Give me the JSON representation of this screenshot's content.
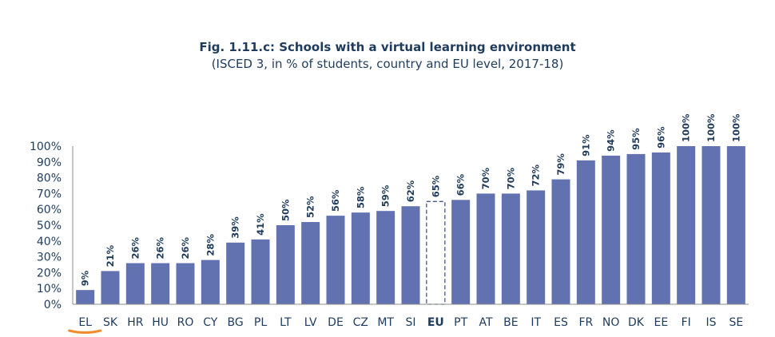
{
  "chart_data": {
    "type": "bar",
    "title": "Fig. 1.11.c: Schools with a virtual learning environment",
    "subtitle": "(ISCED 3, in % of students, country and EU level, 2017-18)",
    "xlabel": "",
    "ylabel": "",
    "ylim": [
      0,
      100
    ],
    "y_ticks": [
      "0%",
      "10%",
      "20%",
      "30%",
      "40%",
      "50%",
      "60%",
      "70%",
      "80%",
      "90%",
      "100%"
    ],
    "categories": [
      "EL",
      "SK",
      "HR",
      "HU",
      "RO",
      "CY",
      "BG",
      "PL",
      "LT",
      "LV",
      "DE",
      "CZ",
      "MT",
      "SI",
      "EU",
      "PT",
      "AT",
      "BE",
      "IT",
      "ES",
      "FR",
      "NO",
      "DK",
      "EE",
      "FI",
      "IS",
      "SE"
    ],
    "values": [
      9,
      21,
      26,
      26,
      26,
      28,
      39,
      41,
      50,
      52,
      56,
      58,
      59,
      62,
      65,
      66,
      70,
      70,
      72,
      79,
      91,
      94,
      95,
      96,
      100,
      100,
      100
    ],
    "value_labels": [
      "9%",
      "21%",
      "26%",
      "26%",
      "26%",
      "28%",
      "39%",
      "41%",
      "50%",
      "52%",
      "56%",
      "58%",
      "59%",
      "62%",
      "65%",
      "66%",
      "70%",
      "70%",
      "72%",
      "79%",
      "91%",
      "94%",
      "95%",
      "96%",
      "100%",
      "100%",
      "100%"
    ],
    "highlight_category": "EU",
    "underlined_category": "EL"
  },
  "colors": {
    "bar": "#6272b1",
    "highlight_bar_outline": "#44598a",
    "axis": "#8c8c8c",
    "text": "#1f3b5c",
    "underline": "#f08b2e"
  }
}
